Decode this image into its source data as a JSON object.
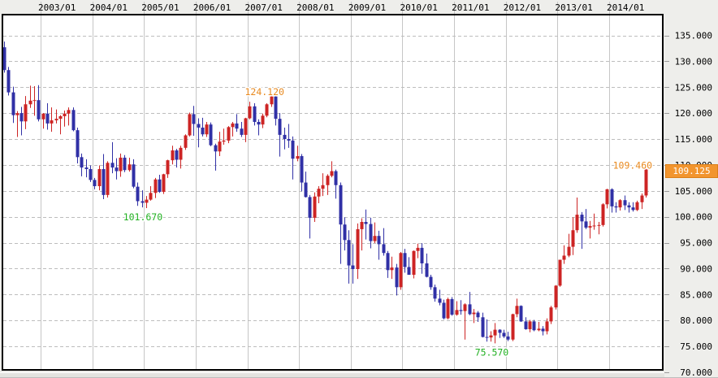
{
  "chart_data": {
    "type": "candlestick",
    "timeframe": "monthly",
    "x_axis": {
      "position": "top",
      "labels": [
        "2003/01",
        "2004/01",
        "2005/01",
        "2006/01",
        "2007/01",
        "2008/01",
        "2009/01",
        "2010/01",
        "2011/01",
        "2012/01",
        "2013/01",
        "2014/01"
      ]
    },
    "y_axis": {
      "position": "right",
      "labels": [
        "135.000",
        "130.000",
        "125.000",
        "120.000",
        "115.000",
        "110.000",
        "105.000",
        "100.000",
        "95.000",
        "90.000",
        "85.000",
        "80.000",
        "75.000",
        "70.000"
      ],
      "min": 70,
      "max": 139,
      "tick_interval": 5
    },
    "grid": {
      "horizontal": "dashed",
      "vertical": "solid"
    },
    "current_price": 109.125,
    "current_price_label": "109.125",
    "annotations": [
      {
        "text": "124.120",
        "value": 124.12,
        "date": "2007/06",
        "kind": "high",
        "color": "#e8891e",
        "placement": "above"
      },
      {
        "text": "101.670",
        "value": 101.67,
        "date": "2005/01",
        "kind": "low",
        "color": "#21b021",
        "placement": "below"
      },
      {
        "text": "75.570",
        "value": 75.57,
        "date": "2011/10",
        "kind": "low",
        "color": "#21b021",
        "placement": "below"
      },
      {
        "text": "109.460",
        "value": 109.46,
        "date": "2014/09",
        "kind": "high",
        "color": "#e8891e",
        "placement": "left"
      }
    ],
    "colors": {
      "up": "#cd2424",
      "down": "#3030a6",
      "plot_bg": "#ffffff",
      "frame_bg": "#eeeeeb",
      "grid": "#c6c6c6",
      "grid_dashed": "#bdbdbd",
      "axis_text": "#000000",
      "border": "#000000",
      "badge_bg": "#f2952e",
      "badge_border": "#db7f17",
      "badge_text": "#ffffff"
    },
    "candles": [
      [
        "2002/04",
        132.7,
        133.8,
        127.8,
        128.3
      ],
      [
        "2002/05",
        128.3,
        128.9,
        123.4,
        124.0
      ],
      [
        "2002/06",
        124.0,
        125.1,
        118.1,
        119.6
      ],
      [
        "2002/07",
        119.6,
        120.4,
        115.4,
        120.0
      ],
      [
        "2002/08",
        120.0,
        121.2,
        115.7,
        118.4
      ],
      [
        "2002/09",
        118.4,
        123.3,
        116.9,
        121.7
      ],
      [
        "2002/10",
        121.7,
        125.3,
        121.0,
        122.4
      ],
      [
        "2002/11",
        122.4,
        125.2,
        119.5,
        122.5
      ],
      [
        "2002/12",
        122.5,
        125.4,
        118.4,
        118.8
      ],
      [
        "2003/01",
        118.8,
        120.0,
        117.0,
        119.9
      ],
      [
        "2003/02",
        119.9,
        121.9,
        116.8,
        118.0
      ],
      [
        "2003/03",
        118.0,
        121.1,
        116.4,
        118.6
      ],
      [
        "2003/04",
        118.6,
        120.7,
        118.0,
        118.9
      ],
      [
        "2003/05",
        118.9,
        119.6,
        115.9,
        119.4
      ],
      [
        "2003/06",
        119.4,
        120.5,
        117.4,
        119.9
      ],
      [
        "2003/07",
        119.9,
        121.1,
        117.6,
        120.6
      ],
      [
        "2003/08",
        120.6,
        121.1,
        116.5,
        116.7
      ],
      [
        "2003/09",
        116.7,
        117.2,
        110.3,
        111.5
      ],
      [
        "2003/10",
        111.5,
        112.2,
        107.8,
        109.5
      ],
      [
        "2003/11",
        109.5,
        111.1,
        107.6,
        109.2
      ],
      [
        "2003/12",
        109.2,
        109.9,
        106.7,
        107.1
      ],
      [
        "2004/01",
        107.1,
        107.5,
        105.3,
        105.9
      ],
      [
        "2004/02",
        105.9,
        109.9,
        105.1,
        109.2
      ],
      [
        "2004/03",
        109.2,
        112.1,
        103.4,
        104.2
      ],
      [
        "2004/04",
        104.2,
        110.7,
        103.7,
        110.4
      ],
      [
        "2004/05",
        110.4,
        114.4,
        108.4,
        109.5
      ],
      [
        "2004/06",
        109.5,
        111.3,
        107.2,
        108.8
      ],
      [
        "2004/07",
        108.8,
        112.2,
        107.7,
        111.4
      ],
      [
        "2004/08",
        111.4,
        111.9,
        108.6,
        109.0
      ],
      [
        "2004/09",
        109.0,
        111.4,
        108.7,
        110.1
      ],
      [
        "2004/10",
        110.1,
        111.1,
        105.5,
        105.8
      ],
      [
        "2004/11",
        105.8,
        106.6,
        102.1,
        103.0
      ],
      [
        "2004/12",
        103.0,
        105.1,
        101.8,
        102.7
      ],
      [
        "2005/01",
        102.7,
        104.0,
        101.67,
        103.3
      ],
      [
        "2005/02",
        103.3,
        105.9,
        103.1,
        104.6
      ],
      [
        "2005/03",
        104.6,
        107.5,
        103.6,
        107.2
      ],
      [
        "2005/04",
        107.2,
        108.1,
        104.6,
        104.8
      ],
      [
        "2005/05",
        104.8,
        108.3,
        104.4,
        108.2
      ],
      [
        "2005/06",
        108.2,
        111.0,
        107.5,
        110.9
      ],
      [
        "2005/07",
        110.9,
        113.7,
        110.1,
        112.8
      ],
      [
        "2005/08",
        112.8,
        113.1,
        109.5,
        111.0
      ],
      [
        "2005/09",
        111.0,
        113.7,
        109.3,
        113.3
      ],
      [
        "2005/10",
        113.3,
        115.9,
        112.9,
        115.7
      ],
      [
        "2005/11",
        115.7,
        120.1,
        115.5,
        119.8
      ],
      [
        "2005/12",
        119.8,
        121.4,
        115.6,
        117.9
      ],
      [
        "2006/01",
        117.9,
        119.0,
        113.4,
        117.2
      ],
      [
        "2006/02",
        117.2,
        119.1,
        115.5,
        115.9
      ],
      [
        "2006/03",
        115.9,
        118.3,
        115.4,
        117.8
      ],
      [
        "2006/04",
        117.8,
        118.2,
        113.6,
        113.8
      ],
      [
        "2006/05",
        113.8,
        114.1,
        108.9,
        112.6
      ],
      [
        "2006/06",
        112.6,
        116.4,
        111.7,
        114.5
      ],
      [
        "2006/07",
        114.5,
        117.0,
        113.9,
        114.7
      ],
      [
        "2006/08",
        114.7,
        117.5,
        114.2,
        117.3
      ],
      [
        "2006/09",
        117.3,
        118.3,
        115.5,
        118.0
      ],
      [
        "2006/10",
        118.0,
        119.8,
        116.4,
        117.0
      ],
      [
        "2006/11",
        117.0,
        118.3,
        115.4,
        115.8
      ],
      [
        "2006/12",
        115.8,
        119.1,
        114.4,
        119.0
      ],
      [
        "2007/01",
        119.0,
        122.2,
        118.8,
        121.3
      ],
      [
        "2007/02",
        121.3,
        121.9,
        117.6,
        118.3
      ],
      [
        "2007/03",
        118.3,
        118.8,
        115.7,
        117.8
      ],
      [
        "2007/04",
        117.8,
        119.9,
        117.1,
        119.5
      ],
      [
        "2007/05",
        119.5,
        121.9,
        119.2,
        121.7
      ],
      [
        "2007/06",
        121.7,
        124.12,
        121.2,
        123.2
      ],
      [
        "2007/07",
        123.2,
        123.7,
        117.6,
        118.9
      ],
      [
        "2007/08",
        118.9,
        120.0,
        111.6,
        115.8
      ],
      [
        "2007/09",
        115.8,
        117.2,
        113.0,
        115.0
      ],
      [
        "2007/10",
        115.0,
        117.9,
        113.3,
        114.7
      ],
      [
        "2007/11",
        114.7,
        115.5,
        107.2,
        111.2
      ],
      [
        "2007/12",
        111.2,
        113.7,
        110.7,
        111.7
      ],
      [
        "2008/01",
        111.7,
        112.1,
        104.9,
        106.6
      ],
      [
        "2008/02",
        106.6,
        108.7,
        103.7,
        103.8
      ],
      [
        "2008/03",
        103.8,
        104.2,
        95.8,
        99.8
      ],
      [
        "2008/04",
        99.8,
        104.7,
        99.0,
        103.9
      ],
      [
        "2008/05",
        103.9,
        105.9,
        102.6,
        105.4
      ],
      [
        "2008/06",
        105.4,
        108.4,
        104.0,
        106.1
      ],
      [
        "2008/07",
        106.1,
        108.2,
        104.2,
        107.9
      ],
      [
        "2008/08",
        107.9,
        110.7,
        107.6,
        108.8
      ],
      [
        "2008/09",
        108.8,
        109.1,
        103.5,
        106.1
      ],
      [
        "2008/10",
        106.1,
        106.6,
        90.9,
        98.5
      ],
      [
        "2008/11",
        98.5,
        99.9,
        93.5,
        95.5
      ],
      [
        "2008/12",
        95.5,
        97.4,
        87.1,
        90.6
      ],
      [
        "2009/01",
        90.6,
        94.7,
        87.1,
        89.9
      ],
      [
        "2009/02",
        89.9,
        98.7,
        88.0,
        97.6
      ],
      [
        "2009/03",
        97.6,
        99.7,
        93.5,
        99.0
      ],
      [
        "2009/04",
        99.0,
        101.4,
        95.6,
        98.6
      ],
      [
        "2009/05",
        98.6,
        99.8,
        93.9,
        95.3
      ],
      [
        "2009/06",
        95.3,
        98.9,
        94.9,
        96.3
      ],
      [
        "2009/07",
        96.3,
        97.3,
        91.7,
        94.7
      ],
      [
        "2009/08",
        94.7,
        97.8,
        92.5,
        93.0
      ],
      [
        "2009/09",
        93.0,
        93.4,
        88.2,
        89.7
      ],
      [
        "2009/10",
        89.7,
        92.3,
        88.0,
        90.2
      ],
      [
        "2009/11",
        90.2,
        90.9,
        84.8,
        86.4
      ],
      [
        "2009/12",
        86.4,
        93.2,
        85.9,
        93.0
      ],
      [
        "2010/01",
        93.0,
        93.8,
        89.2,
        90.3
      ],
      [
        "2010/02",
        90.3,
        92.2,
        88.9,
        88.8
      ],
      [
        "2010/03",
        88.8,
        93.5,
        88.1,
        93.4
      ],
      [
        "2010/04",
        93.4,
        94.8,
        92.0,
        94.0
      ],
      [
        "2010/05",
        94.0,
        94.9,
        89.0,
        91.0
      ],
      [
        "2010/06",
        91.0,
        92.9,
        88.3,
        88.4
      ],
      [
        "2010/07",
        88.4,
        88.8,
        85.9,
        86.4
      ],
      [
        "2010/08",
        86.4,
        86.9,
        83.6,
        84.2
      ],
      [
        "2010/09",
        84.2,
        85.9,
        82.9,
        83.4
      ],
      [
        "2010/10",
        83.4,
        84.0,
        80.2,
        80.4
      ],
      [
        "2010/11",
        80.4,
        84.4,
        80.2,
        84.1
      ],
      [
        "2010/12",
        84.1,
        84.5,
        80.9,
        81.1
      ],
      [
        "2011/01",
        81.1,
        83.7,
        80.9,
        82.0
      ],
      [
        "2011/02",
        82.0,
        83.9,
        81.1,
        81.8
      ],
      [
        "2011/03",
        81.8,
        83.3,
        76.3,
        83.1
      ],
      [
        "2011/04",
        83.1,
        85.5,
        81.0,
        81.2
      ],
      [
        "2011/05",
        81.2,
        82.2,
        79.5,
        81.5
      ],
      [
        "2011/06",
        81.5,
        81.8,
        79.7,
        80.6
      ],
      [
        "2011/07",
        80.6,
        81.5,
        76.7,
        76.8
      ],
      [
        "2011/08",
        76.8,
        80.2,
        75.9,
        76.7
      ],
      [
        "2011/09",
        76.7,
        77.9,
        75.9,
        77.1
      ],
      [
        "2011/10",
        77.1,
        79.5,
        75.57,
        78.2
      ],
      [
        "2011/11",
        78.2,
        78.3,
        76.6,
        77.6
      ],
      [
        "2011/12",
        77.6,
        78.2,
        76.6,
        76.9
      ],
      [
        "2012/01",
        76.9,
        77.8,
        76.0,
        76.3
      ],
      [
        "2012/02",
        76.3,
        81.3,
        76.0,
        81.2
      ],
      [
        "2012/03",
        81.2,
        84.2,
        80.6,
        82.8
      ],
      [
        "2012/04",
        82.8,
        82.9,
        79.7,
        79.8
      ],
      [
        "2012/05",
        79.8,
        80.6,
        78.2,
        78.3
      ],
      [
        "2012/06",
        78.3,
        80.1,
        77.7,
        79.8
      ],
      [
        "2012/07",
        79.8,
        80.1,
        77.9,
        78.1
      ],
      [
        "2012/08",
        78.1,
        79.7,
        77.9,
        78.4
      ],
      [
        "2012/09",
        78.4,
        78.9,
        77.1,
        77.9
      ],
      [
        "2012/10",
        77.9,
        80.4,
        77.3,
        79.8
      ],
      [
        "2012/11",
        79.8,
        82.8,
        79.3,
        82.5
      ],
      [
        "2012/12",
        82.5,
        86.8,
        82.1,
        86.7
      ],
      [
        "2013/01",
        86.7,
        91.7,
        86.5,
        91.7
      ],
      [
        "2013/02",
        91.7,
        94.5,
        90.9,
        92.5
      ],
      [
        "2013/03",
        92.5,
        96.7,
        92.2,
        94.2
      ],
      [
        "2013/04",
        94.2,
        99.9,
        92.6,
        97.4
      ],
      [
        "2013/05",
        97.4,
        103.7,
        96.9,
        100.4
      ],
      [
        "2013/06",
        100.4,
        100.9,
        93.8,
        99.1
      ],
      [
        "2013/07",
        99.1,
        101.5,
        97.6,
        97.9
      ],
      [
        "2013/08",
        97.9,
        99.2,
        95.8,
        98.2
      ],
      [
        "2013/09",
        98.2,
        100.6,
        97.5,
        98.3
      ],
      [
        "2013/10",
        98.3,
        99.0,
        96.6,
        98.4
      ],
      [
        "2013/11",
        98.4,
        102.6,
        98.1,
        102.4
      ],
      [
        "2013/12",
        102.4,
        105.4,
        101.6,
        105.3
      ],
      [
        "2014/01",
        105.3,
        105.5,
        100.8,
        102.0
      ],
      [
        "2014/02",
        102.0,
        102.8,
        100.8,
        101.8
      ],
      [
        "2014/03",
        101.8,
        103.4,
        101.2,
        103.2
      ],
      [
        "2014/04",
        103.2,
        104.1,
        101.3,
        102.2
      ],
      [
        "2014/05",
        102.2,
        102.8,
        100.8,
        101.8
      ],
      [
        "2014/06",
        101.8,
        102.8,
        101.0,
        101.3
      ],
      [
        "2014/07",
        101.3,
        103.1,
        101.1,
        102.8
      ],
      [
        "2014/08",
        102.8,
        104.5,
        101.5,
        104.1
      ],
      [
        "2014/09",
        104.1,
        109.46,
        103.7,
        109.125
      ]
    ]
  }
}
